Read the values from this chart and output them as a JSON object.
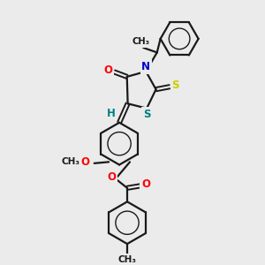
{
  "background_color": "#ebebeb",
  "line_color": "#1a1a1a",
  "line_width": 1.6,
  "atom_colors": {
    "O": "#ff0000",
    "N": "#0000cc",
    "S_thioxo": "#cccc00",
    "S_ring": "#008080",
    "H": "#008080",
    "C": "#1a1a1a"
  },
  "figsize": [
    3.0,
    3.0
  ],
  "dpi": 100,
  "xlim": [
    0,
    10
  ],
  "ylim": [
    0,
    10
  ]
}
